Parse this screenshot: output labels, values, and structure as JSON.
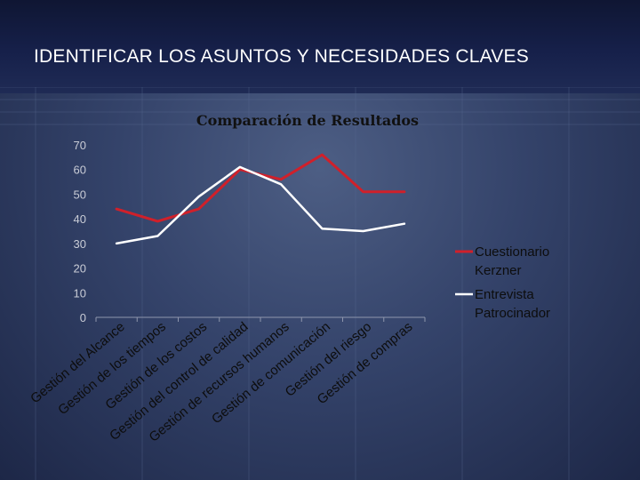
{
  "slide": {
    "title": "IDENTIFICAR LOS ASUNTOS Y NECESIDADES CLAVES"
  },
  "chart_data": {
    "type": "line",
    "title": "Comparación de Resultados",
    "categories": [
      "Gestión del Alcance",
      "Gestión de los tiempos",
      "Gestión de los costos",
      "Gestión del control de calidad",
      "Gestión de recursos humanos",
      "Gestión de comunicación",
      "Gestión del riesgo",
      "Gestión de compras"
    ],
    "series": [
      {
        "name": "Cuestionario Kerzner",
        "color": "#d0202a",
        "values": [
          44,
          39,
          44,
          60,
          56,
          66,
          51,
          51
        ]
      },
      {
        "name": "Entrevista Patrocinador",
        "color": "#ffffff",
        "values": [
          30,
          33,
          49,
          61,
          54,
          36,
          35,
          38
        ]
      }
    ],
    "ylim": [
      0,
      70
    ],
    "yticks": [
      "0",
      "10",
      "20",
      "30",
      "40",
      "50",
      "60",
      "70"
    ],
    "grid": false,
    "legend": "right",
    "xlabel": "",
    "ylabel": ""
  }
}
